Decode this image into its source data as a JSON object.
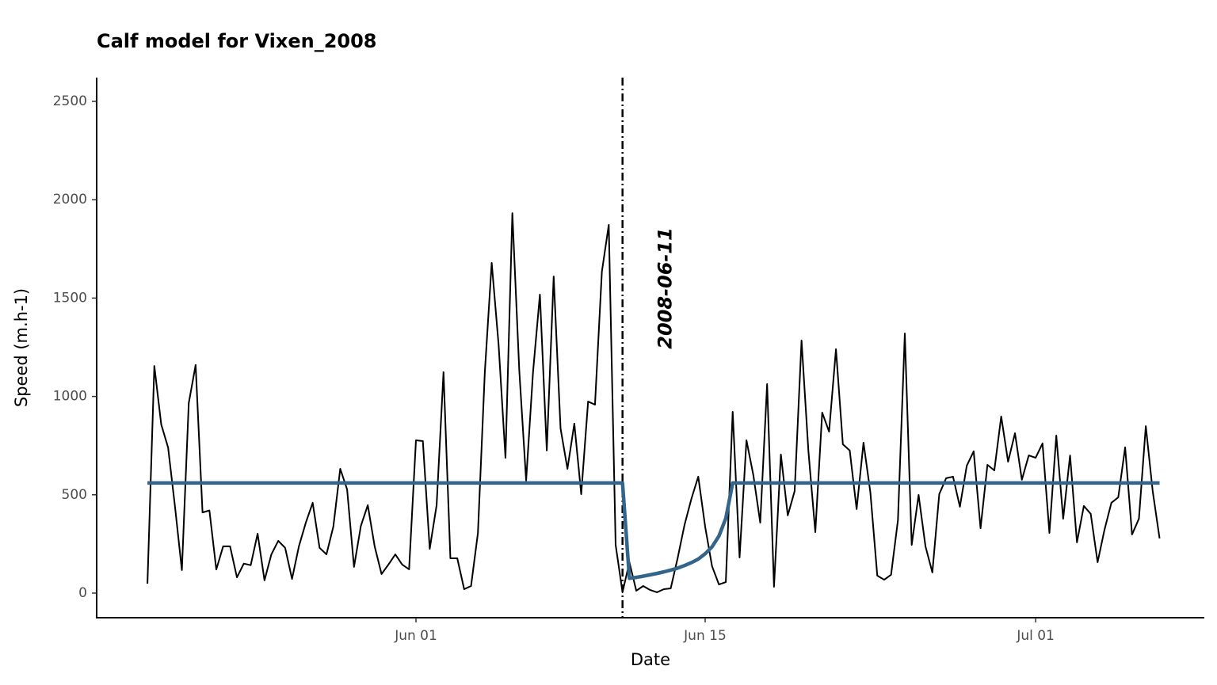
{
  "chart_data": {
    "type": "line",
    "title": "Calf model for Vixen_2008",
    "xlabel": "Date",
    "ylabel": "Speed (m.h-1)",
    "x": [
      "2008-05-19 00:00",
      "2008-05-19 08:00",
      "2008-05-19 16:00",
      "2008-05-20 00:00",
      "2008-05-20 08:00",
      "2008-05-20 16:00",
      "2008-05-21 00:00",
      "2008-05-21 08:00",
      "2008-05-21 16:00",
      "2008-05-22 00:00",
      "2008-05-22 08:00",
      "2008-05-22 16:00",
      "2008-05-23 00:00",
      "2008-05-23 08:00",
      "2008-05-23 16:00",
      "2008-05-24 00:00",
      "2008-05-24 08:00",
      "2008-05-24 16:00",
      "2008-05-25 00:00",
      "2008-05-25 08:00",
      "2008-05-25 16:00",
      "2008-05-26 00:00",
      "2008-05-26 08:00",
      "2008-05-26 16:00",
      "2008-05-27 00:00",
      "2008-05-27 08:00",
      "2008-05-27 16:00",
      "2008-05-28 00:00",
      "2008-05-28 08:00",
      "2008-05-28 16:00",
      "2008-05-29 00:00",
      "2008-05-29 08:00",
      "2008-05-29 16:00",
      "2008-05-30 00:00",
      "2008-05-30 08:00",
      "2008-05-30 16:00",
      "2008-05-31 00:00",
      "2008-05-31 08:00",
      "2008-05-31 16:00",
      "2008-06-01 00:00",
      "2008-06-01 08:00",
      "2008-06-01 16:00",
      "2008-06-02 00:00",
      "2008-06-02 08:00",
      "2008-06-02 16:00",
      "2008-06-03 00:00",
      "2008-06-03 08:00",
      "2008-06-03 16:00",
      "2008-06-04 00:00",
      "2008-06-04 08:00",
      "2008-06-04 16:00",
      "2008-06-05 00:00",
      "2008-06-05 08:00",
      "2008-06-05 16:00",
      "2008-06-06 00:00",
      "2008-06-06 08:00",
      "2008-06-06 16:00",
      "2008-06-07 00:00",
      "2008-06-07 08:00",
      "2008-06-07 16:00",
      "2008-06-08 00:00",
      "2008-06-08 08:00",
      "2008-06-08 16:00",
      "2008-06-09 00:00",
      "2008-06-09 08:00",
      "2008-06-09 16:00",
      "2008-06-10 00:00",
      "2008-06-10 08:00",
      "2008-06-10 16:00",
      "2008-06-11 00:00",
      "2008-06-11 08:00",
      "2008-06-11 16:00",
      "2008-06-12 00:00",
      "2008-06-12 08:00",
      "2008-06-12 16:00",
      "2008-06-13 00:00",
      "2008-06-13 08:00",
      "2008-06-13 16:00",
      "2008-06-14 00:00",
      "2008-06-14 08:00",
      "2008-06-14 16:00",
      "2008-06-15 00:00",
      "2008-06-15 08:00",
      "2008-06-15 16:00",
      "2008-06-16 00:00",
      "2008-06-16 08:00",
      "2008-06-16 16:00",
      "2008-06-17 00:00",
      "2008-06-17 08:00",
      "2008-06-17 16:00",
      "2008-06-18 00:00",
      "2008-06-18 08:00",
      "2008-06-18 16:00",
      "2008-06-19 00:00",
      "2008-06-19 08:00",
      "2008-06-19 16:00",
      "2008-06-20 00:00",
      "2008-06-20 08:00",
      "2008-06-20 16:00",
      "2008-06-21 00:00",
      "2008-06-21 08:00",
      "2008-06-21 16:00",
      "2008-06-22 00:00",
      "2008-06-22 08:00",
      "2008-06-22 16:00",
      "2008-06-23 00:00",
      "2008-06-23 08:00",
      "2008-06-23 16:00",
      "2008-06-24 00:00",
      "2008-06-24 08:00",
      "2008-06-24 16:00",
      "2008-06-25 00:00",
      "2008-06-25 08:00",
      "2008-06-25 16:00",
      "2008-06-26 00:00",
      "2008-06-26 08:00",
      "2008-06-26 16:00",
      "2008-06-27 00:00",
      "2008-06-27 08:00",
      "2008-06-27 16:00",
      "2008-06-28 00:00",
      "2008-06-28 08:00",
      "2008-06-28 16:00",
      "2008-06-29 00:00",
      "2008-06-29 08:00",
      "2008-06-29 16:00",
      "2008-06-30 00:00",
      "2008-06-30 08:00",
      "2008-06-30 16:00",
      "2008-07-01 00:00",
      "2008-07-01 08:00",
      "2008-07-01 16:00",
      "2008-07-02 00:00",
      "2008-07-02 08:00",
      "2008-07-02 16:00",
      "2008-07-03 00:00",
      "2008-07-03 08:00",
      "2008-07-03 16:00",
      "2008-07-04 00:00",
      "2008-07-04 08:00",
      "2008-07-04 16:00",
      "2008-07-05 00:00",
      "2008-07-05 08:00",
      "2008-07-05 16:00",
      "2008-07-06 00:00",
      "2008-07-06 08:00",
      "2008-07-06 16:00",
      "2008-07-07 00:00"
    ],
    "series": [
      {
        "color": "#000000",
        "width": 2,
        "values": [
          48,
          1155,
          858,
          740,
          440,
          117,
          966,
          1160,
          410,
          420,
          120,
          238,
          238,
          80,
          150,
          142,
          302,
          65,
          197,
          266,
          230,
          72,
          238,
          358,
          459,
          230,
          197,
          338,
          632,
          527,
          133,
          342,
          447,
          238,
          97,
          145,
          197,
          145,
          121,
          777,
          773,
          225,
          447,
          1123,
          177,
          177,
          20,
          36,
          306,
          1123,
          1679,
          1264,
          688,
          1932,
          1135,
          572,
          1123,
          1518,
          725,
          1610,
          837,
          632,
          862,
          503,
          974,
          958,
          1634,
          1872,
          245,
          4,
          157,
          12,
          36,
          16,
          4,
          20,
          24,
          177,
          346,
          479,
          592,
          338,
          137,
          44,
          56,
          922,
          181,
          777,
          600,
          358,
          1063,
          32,
          705,
          395,
          519,
          1284,
          721,
          310,
          918,
          821,
          1240,
          757,
          725,
          427,
          765,
          511,
          89,
          68,
          93,
          370,
          1320,
          245,
          499,
          238,
          105,
          503,
          584,
          592,
          439,
          648,
          721,
          330,
          652,
          624,
          898,
          668,
          813,
          576,
          700,
          688,
          761,
          306,
          801,
          378,
          700,
          258,
          443,
          403,
          157,
          322,
          459,
          487,
          741,
          298,
          378,
          849,
          519,
          278
        ]
      },
      {
        "color": "#33658a",
        "width": 4.5,
        "values": [
          560,
          560,
          560,
          560,
          560,
          560,
          560,
          560,
          560,
          560,
          560,
          560,
          560,
          560,
          560,
          560,
          560,
          560,
          560,
          560,
          560,
          560,
          560,
          560,
          560,
          560,
          560,
          560,
          560,
          560,
          560,
          560,
          560,
          560,
          560,
          560,
          560,
          560,
          560,
          560,
          560,
          560,
          560,
          560,
          560,
          560,
          560,
          560,
          560,
          560,
          560,
          560,
          560,
          560,
          560,
          560,
          560,
          560,
          560,
          560,
          560,
          560,
          560,
          560,
          560,
          560,
          560,
          560,
          560,
          560,
          75,
          80,
          86,
          93,
          100,
          108,
          117,
          127,
          140,
          155,
          173,
          200,
          235,
          290,
          380,
          560,
          560,
          560,
          560,
          560,
          560,
          560,
          560,
          560,
          560,
          560,
          560,
          560,
          560,
          560,
          560,
          560,
          560,
          560,
          560,
          560,
          560,
          560,
          560,
          560,
          560,
          560,
          560,
          560,
          560,
          560,
          560,
          560,
          560,
          560,
          560,
          560,
          560,
          560,
          560,
          560,
          560,
          560,
          560,
          560,
          560,
          560,
          560,
          560,
          560,
          560,
          560,
          560,
          560,
          560,
          560,
          560,
          560,
          560,
          560,
          560,
          560,
          560
        ]
      }
    ],
    "vline": "2008-06-11",
    "xlim": [
      "2008-05-16 13:00",
      "2008-07-09 04:00"
    ],
    "xticks": [
      {
        "value": "2008-06-01",
        "label": "Jun 01"
      },
      {
        "value": "2008-06-15",
        "label": "Jun 15"
      },
      {
        "value": "2008-07-01",
        "label": "Jul 01"
      }
    ],
    "ylim": [
      -125,
      2621
    ],
    "yticks": [
      0,
      500,
      1000,
      1500,
      2000,
      2500
    ],
    "grid": false
  }
}
